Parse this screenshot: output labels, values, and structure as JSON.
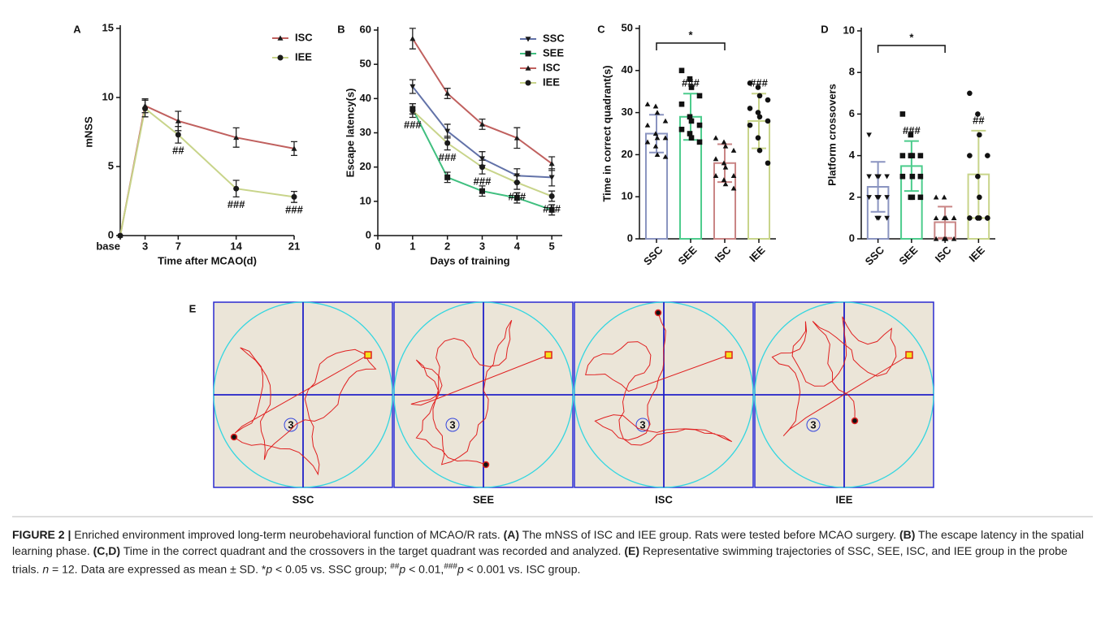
{
  "chart_data": [
    {
      "type": "line",
      "panel": "A",
      "ylabel": "mNSS",
      "xlabel": "Time after MCAO(d)",
      "x": [
        0,
        3,
        7,
        14,
        21
      ],
      "xlim": [
        0,
        21
      ],
      "xticks": [
        {
          "value": 0,
          "label": "base"
        },
        3,
        7,
        14,
        21
      ],
      "ylim": [
        0,
        15
      ],
      "yticks": [
        0,
        5,
        10,
        15
      ],
      "series": [
        {
          "name": "ISC",
          "color": "#c0605e",
          "marker": "triangle-up",
          "values": [
            0,
            9.4,
            8.3,
            7.1,
            6.3
          ],
          "errors": [
            0,
            0.5,
            0.7,
            0.7,
            0.5
          ]
        },
        {
          "name": "IEE",
          "color": "#c8d48a",
          "marker": "circle",
          "values": [
            0,
            9.2,
            7.3,
            3.4,
            2.8
          ],
          "errors": [
            0,
            0.6,
            0.6,
            0.6,
            0.4
          ],
          "significance": [
            null,
            null,
            "##",
            "###",
            "###"
          ]
        }
      ]
    },
    {
      "type": "line",
      "panel": "B",
      "ylabel": "Escape latency(s)",
      "xlabel": "Days of training",
      "x": [
        1,
        2,
        3,
        4,
        5
      ],
      "xlim": [
        0,
        5.3
      ],
      "xticks": [
        0,
        1,
        2,
        3,
        4,
        5
      ],
      "ylim": [
        0,
        60
      ],
      "yticks": [
        0,
        10,
        20,
        30,
        40,
        50,
        60
      ],
      "series": [
        {
          "name": "SSC",
          "color": "#6272a8",
          "marker": "triangle-down",
          "values": [
            43.5,
            30.5,
            22.5,
            17.5,
            17
          ],
          "errors": [
            2,
            2,
            2,
            2,
            2.5
          ]
        },
        {
          "name": "SEE",
          "color": "#3fbf7f",
          "marker": "square",
          "values": [
            37,
            17,
            13,
            11,
            7.5
          ],
          "errors": [
            1.5,
            1.5,
            1.5,
            1.5,
            1.5
          ]
        },
        {
          "name": "ISC",
          "color": "#c0605e",
          "marker": "triangle-up",
          "values": [
            57.5,
            41.5,
            32.5,
            28.5,
            21
          ],
          "errors": [
            3,
            1.5,
            1.5,
            3,
            2
          ]
        },
        {
          "name": "IEE",
          "color": "#c8d48a",
          "marker": "circle",
          "values": [
            36.5,
            27,
            20,
            15.5,
            11.5
          ],
          "errors": [
            2,
            2,
            2,
            2,
            1.5
          ],
          "significance": [
            "###",
            "###",
            "###",
            "###",
            "###"
          ]
        }
      ]
    },
    {
      "type": "bar",
      "panel": "C",
      "ylabel": "Time in correct quadrant(s)",
      "categories": [
        "SSC",
        "SEE",
        "ISC",
        "IEE"
      ],
      "values": [
        25,
        29,
        18,
        28
      ],
      "errors": [
        4.5,
        5.5,
        4.5,
        6.5
      ],
      "colors": [
        "#8a94c0",
        "#4ccc8c",
        "#c98585",
        "#c8d48a"
      ],
      "markers": [
        "triangle-up",
        "square",
        "triangle-up",
        "circle"
      ],
      "points": [
        [
          32,
          31.5,
          30,
          28,
          27,
          25,
          24,
          24,
          23,
          22,
          20,
          19.5
        ],
        [
          40,
          38,
          36,
          34,
          32,
          29,
          28,
          27,
          26,
          25,
          24,
          23
        ],
        [
          24,
          23,
          22,
          21,
          19,
          18,
          17,
          15,
          15,
          14,
          13,
          12
        ],
        [
          37,
          36,
          34,
          33,
          31,
          30,
          29,
          28,
          27,
          24,
          21,
          18
        ]
      ],
      "significance": [
        null,
        "###",
        null,
        "###"
      ],
      "bracket_label": "*",
      "ylim": [
        0,
        50
      ],
      "yticks": [
        0,
        10,
        20,
        30,
        40,
        50
      ]
    },
    {
      "type": "bar",
      "panel": "D",
      "ylabel": "Platform crossovers",
      "categories": [
        "SSC",
        "SEE",
        "ISC",
        "IEE"
      ],
      "values": [
        2.5,
        3.5,
        0.8,
        3.1
      ],
      "errors": [
        1.2,
        1.2,
        0.75,
        2.1
      ],
      "colors": [
        "#8a94c0",
        "#4ccc8c",
        "#c98585",
        "#c8d48a"
      ],
      "markers": [
        "triangle-down",
        "square",
        "triangle-up",
        "circle"
      ],
      "points": [
        [
          5,
          3,
          3,
          3,
          3,
          2,
          2,
          2,
          2,
          1,
          1,
          1
        ],
        [
          6,
          5,
          4,
          4,
          4,
          4,
          3,
          3,
          3,
          2,
          2,
          2
        ],
        [
          2,
          2,
          1,
          1,
          1,
          1,
          1,
          1,
          0,
          0,
          0,
          0
        ],
        [
          7,
          6,
          5,
          4,
          4,
          3,
          2,
          1,
          1,
          1,
          1,
          1
        ]
      ],
      "significance": [
        null,
        "###",
        null,
        "##"
      ],
      "bracket_label": "*",
      "ylim": [
        0,
        10
      ],
      "yticks": [
        0,
        2,
        4,
        6,
        8,
        10
      ]
    }
  ],
  "panel_e": {
    "panel": "E",
    "labels": [
      "SSC",
      "SEE",
      "ISC",
      "IEE"
    ],
    "quadrant_label": "3"
  },
  "caption": {
    "label": "FIGURE 2 |",
    "segments": [
      " Enriched environment improved long-term neurobehavioral function of MCAO/R rats. ",
      "(A)",
      " The mNSS of ISC and IEE group. Rats were tested before MCAO surgery. ",
      "(B)",
      " The escape latency in the spatial learning phase. ",
      "(C,D)",
      " Time in the correct quadrant and the crossovers in the target quadrant was recorded and analyzed. ",
      "(E)",
      " Representative swimming trajectories of SSC, SEE, ISC, and IEE group in the probe trials. ",
      "n",
      " = 12. Data are expressed as mean ± SD. *",
      "p",
      " < 0.05 vs. SSC group; ",
      "##",
      "p",
      " < 0.01,",
      "###",
      "p",
      " < 0.001 vs. ISC group."
    ]
  }
}
